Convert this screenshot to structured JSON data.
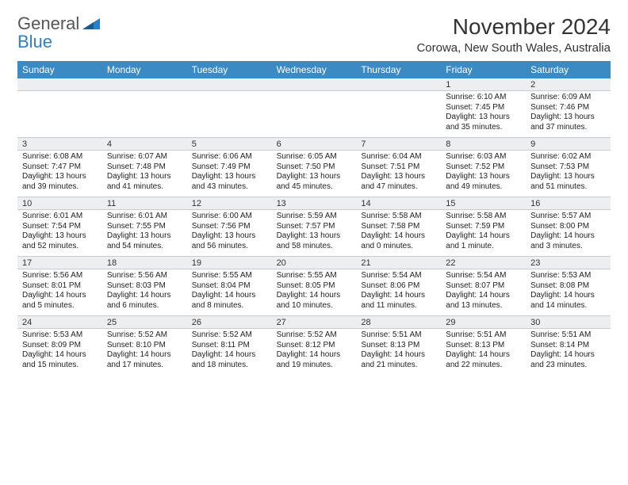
{
  "logo": {
    "word1": "General",
    "word2": "Blue"
  },
  "title": "November 2024",
  "location": "Corowa, New South Wales, Australia",
  "colors": {
    "header_bg": "#3b8ac4",
    "header_text": "#ffffff",
    "daynum_bg": "#eceeef",
    "border": "#c8ccd0",
    "body_text": "#222222"
  },
  "day_names": [
    "Sunday",
    "Monday",
    "Tuesday",
    "Wednesday",
    "Thursday",
    "Friday",
    "Saturday"
  ],
  "weeks": [
    [
      null,
      null,
      null,
      null,
      null,
      {
        "n": "1",
        "sunrise": "Sunrise: 6:10 AM",
        "sunset": "Sunset: 7:45 PM",
        "day1": "Daylight: 13 hours",
        "day2": "and 35 minutes."
      },
      {
        "n": "2",
        "sunrise": "Sunrise: 6:09 AM",
        "sunset": "Sunset: 7:46 PM",
        "day1": "Daylight: 13 hours",
        "day2": "and 37 minutes."
      }
    ],
    [
      {
        "n": "3",
        "sunrise": "Sunrise: 6:08 AM",
        "sunset": "Sunset: 7:47 PM",
        "day1": "Daylight: 13 hours",
        "day2": "and 39 minutes."
      },
      {
        "n": "4",
        "sunrise": "Sunrise: 6:07 AM",
        "sunset": "Sunset: 7:48 PM",
        "day1": "Daylight: 13 hours",
        "day2": "and 41 minutes."
      },
      {
        "n": "5",
        "sunrise": "Sunrise: 6:06 AM",
        "sunset": "Sunset: 7:49 PM",
        "day1": "Daylight: 13 hours",
        "day2": "and 43 minutes."
      },
      {
        "n": "6",
        "sunrise": "Sunrise: 6:05 AM",
        "sunset": "Sunset: 7:50 PM",
        "day1": "Daylight: 13 hours",
        "day2": "and 45 minutes."
      },
      {
        "n": "7",
        "sunrise": "Sunrise: 6:04 AM",
        "sunset": "Sunset: 7:51 PM",
        "day1": "Daylight: 13 hours",
        "day2": "and 47 minutes."
      },
      {
        "n": "8",
        "sunrise": "Sunrise: 6:03 AM",
        "sunset": "Sunset: 7:52 PM",
        "day1": "Daylight: 13 hours",
        "day2": "and 49 minutes."
      },
      {
        "n": "9",
        "sunrise": "Sunrise: 6:02 AM",
        "sunset": "Sunset: 7:53 PM",
        "day1": "Daylight: 13 hours",
        "day2": "and 51 minutes."
      }
    ],
    [
      {
        "n": "10",
        "sunrise": "Sunrise: 6:01 AM",
        "sunset": "Sunset: 7:54 PM",
        "day1": "Daylight: 13 hours",
        "day2": "and 52 minutes."
      },
      {
        "n": "11",
        "sunrise": "Sunrise: 6:01 AM",
        "sunset": "Sunset: 7:55 PM",
        "day1": "Daylight: 13 hours",
        "day2": "and 54 minutes."
      },
      {
        "n": "12",
        "sunrise": "Sunrise: 6:00 AM",
        "sunset": "Sunset: 7:56 PM",
        "day1": "Daylight: 13 hours",
        "day2": "and 56 minutes."
      },
      {
        "n": "13",
        "sunrise": "Sunrise: 5:59 AM",
        "sunset": "Sunset: 7:57 PM",
        "day1": "Daylight: 13 hours",
        "day2": "and 58 minutes."
      },
      {
        "n": "14",
        "sunrise": "Sunrise: 5:58 AM",
        "sunset": "Sunset: 7:58 PM",
        "day1": "Daylight: 14 hours",
        "day2": "and 0 minutes."
      },
      {
        "n": "15",
        "sunrise": "Sunrise: 5:58 AM",
        "sunset": "Sunset: 7:59 PM",
        "day1": "Daylight: 14 hours",
        "day2": "and 1 minute."
      },
      {
        "n": "16",
        "sunrise": "Sunrise: 5:57 AM",
        "sunset": "Sunset: 8:00 PM",
        "day1": "Daylight: 14 hours",
        "day2": "and 3 minutes."
      }
    ],
    [
      {
        "n": "17",
        "sunrise": "Sunrise: 5:56 AM",
        "sunset": "Sunset: 8:01 PM",
        "day1": "Daylight: 14 hours",
        "day2": "and 5 minutes."
      },
      {
        "n": "18",
        "sunrise": "Sunrise: 5:56 AM",
        "sunset": "Sunset: 8:03 PM",
        "day1": "Daylight: 14 hours",
        "day2": "and 6 minutes."
      },
      {
        "n": "19",
        "sunrise": "Sunrise: 5:55 AM",
        "sunset": "Sunset: 8:04 PM",
        "day1": "Daylight: 14 hours",
        "day2": "and 8 minutes."
      },
      {
        "n": "20",
        "sunrise": "Sunrise: 5:55 AM",
        "sunset": "Sunset: 8:05 PM",
        "day1": "Daylight: 14 hours",
        "day2": "and 10 minutes."
      },
      {
        "n": "21",
        "sunrise": "Sunrise: 5:54 AM",
        "sunset": "Sunset: 8:06 PM",
        "day1": "Daylight: 14 hours",
        "day2": "and 11 minutes."
      },
      {
        "n": "22",
        "sunrise": "Sunrise: 5:54 AM",
        "sunset": "Sunset: 8:07 PM",
        "day1": "Daylight: 14 hours",
        "day2": "and 13 minutes."
      },
      {
        "n": "23",
        "sunrise": "Sunrise: 5:53 AM",
        "sunset": "Sunset: 8:08 PM",
        "day1": "Daylight: 14 hours",
        "day2": "and 14 minutes."
      }
    ],
    [
      {
        "n": "24",
        "sunrise": "Sunrise: 5:53 AM",
        "sunset": "Sunset: 8:09 PM",
        "day1": "Daylight: 14 hours",
        "day2": "and 15 minutes."
      },
      {
        "n": "25",
        "sunrise": "Sunrise: 5:52 AM",
        "sunset": "Sunset: 8:10 PM",
        "day1": "Daylight: 14 hours",
        "day2": "and 17 minutes."
      },
      {
        "n": "26",
        "sunrise": "Sunrise: 5:52 AM",
        "sunset": "Sunset: 8:11 PM",
        "day1": "Daylight: 14 hours",
        "day2": "and 18 minutes."
      },
      {
        "n": "27",
        "sunrise": "Sunrise: 5:52 AM",
        "sunset": "Sunset: 8:12 PM",
        "day1": "Daylight: 14 hours",
        "day2": "and 19 minutes."
      },
      {
        "n": "28",
        "sunrise": "Sunrise: 5:51 AM",
        "sunset": "Sunset: 8:13 PM",
        "day1": "Daylight: 14 hours",
        "day2": "and 21 minutes."
      },
      {
        "n": "29",
        "sunrise": "Sunrise: 5:51 AM",
        "sunset": "Sunset: 8:13 PM",
        "day1": "Daylight: 14 hours",
        "day2": "and 22 minutes."
      },
      {
        "n": "30",
        "sunrise": "Sunrise: 5:51 AM",
        "sunset": "Sunset: 8:14 PM",
        "day1": "Daylight: 14 hours",
        "day2": "and 23 minutes."
      }
    ]
  ]
}
